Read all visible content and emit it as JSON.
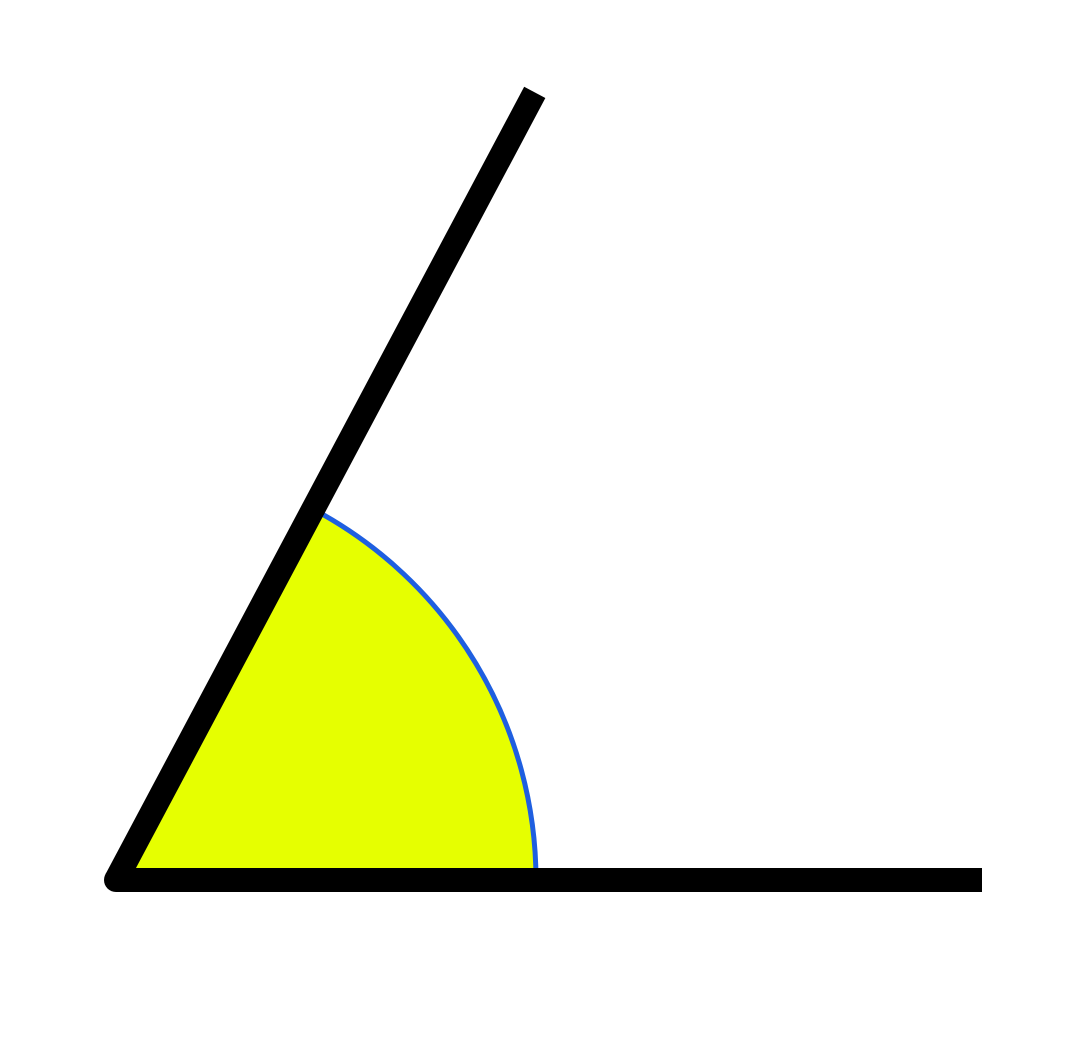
{
  "diagram": {
    "type": "angle",
    "angle_degrees": 62,
    "colors": {
      "background": "#ffffff",
      "ray": "#000000",
      "sector_fill": "#e6ff00",
      "arc": "#1f5fe0"
    }
  }
}
